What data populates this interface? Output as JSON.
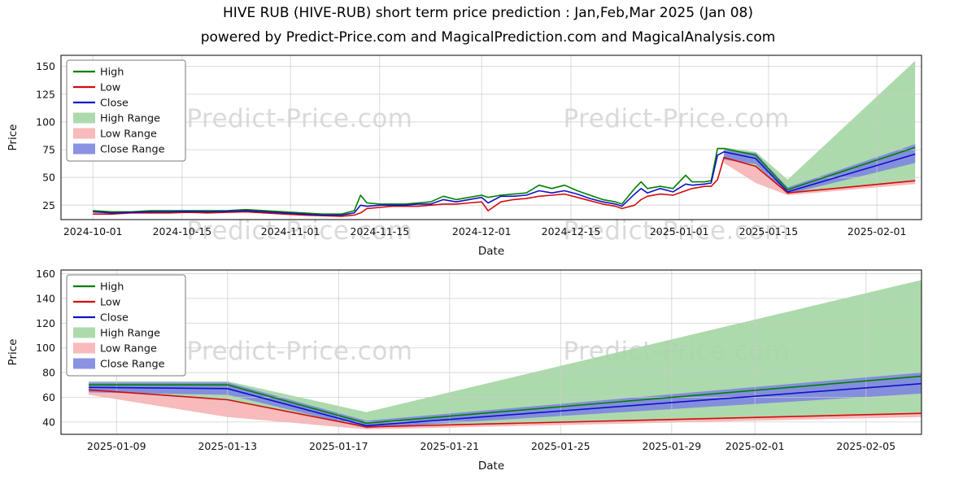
{
  "page": {
    "title": "HIVE RUB (HIVE-RUB) short term price prediction : Jan,Feb,Mar 2025 (Jan 08)",
    "subtitle": "powered by Predict-Price.com and MagicalPrediction.com and MagicalAnalysis.com",
    "watermark": "Predict-Price.com"
  },
  "colors": {
    "high": "#008000",
    "low": "#d40b0b",
    "close": "#1010cc",
    "high_range": "#a3d6a3",
    "low_range": "#f7b3b3",
    "close_range": "#7e86e0",
    "grid": "#cccccc",
    "watermark": "#c4c4c4"
  },
  "legend": [
    {
      "label": "High",
      "swatch": "line",
      "color_key": "high"
    },
    {
      "label": "Low",
      "swatch": "line",
      "color_key": "low"
    },
    {
      "label": "Close",
      "swatch": "line",
      "color_key": "close"
    },
    {
      "label": "High Range",
      "swatch": "patch",
      "color_key": "high_range"
    },
    {
      "label": "Low Range",
      "swatch": "patch",
      "color_key": "low_range"
    },
    {
      "label": "Close Range",
      "swatch": "patch",
      "color_key": "close_range"
    }
  ],
  "chart_data": [
    {
      "type": "line",
      "ylabel": "Price",
      "xlabel": "Date",
      "ylim": [
        12,
        160
      ],
      "yticks": [
        25,
        50,
        75,
        100,
        125,
        150
      ],
      "xdomain": [
        "2024-09-26",
        "2025-02-08"
      ],
      "xticks": [
        "2024-10-01",
        "2024-10-15",
        "2024-11-01",
        "2024-11-15",
        "2024-12-01",
        "2024-12-15",
        "2025-01-01",
        "2025-01-15",
        "2025-02-01"
      ],
      "history": {
        "dates": [
          "2024-10-01",
          "2024-10-04",
          "2024-10-07",
          "2024-10-10",
          "2024-10-13",
          "2024-10-16",
          "2024-10-19",
          "2024-10-22",
          "2024-10-25",
          "2024-10-28",
          "2024-10-31",
          "2024-11-03",
          "2024-11-06",
          "2024-11-09",
          "2024-11-11",
          "2024-11-12",
          "2024-11-13",
          "2024-11-15",
          "2024-11-17",
          "2024-11-19",
          "2024-11-21",
          "2024-11-23",
          "2024-11-25",
          "2024-11-27",
          "2024-11-29",
          "2024-12-01",
          "2024-12-02",
          "2024-12-04",
          "2024-12-06",
          "2024-12-08",
          "2024-12-10",
          "2024-12-12",
          "2024-12-14",
          "2024-12-16",
          "2024-12-18",
          "2024-12-20",
          "2024-12-22",
          "2024-12-23",
          "2024-12-25",
          "2024-12-26",
          "2024-12-27",
          "2024-12-29",
          "2024-12-31",
          "2025-01-02",
          "2025-01-03",
          "2025-01-05",
          "2025-01-06",
          "2025-01-07",
          "2025-01-08"
        ],
        "high": [
          20,
          19,
          19,
          20,
          20,
          20,
          20,
          20,
          21,
          20,
          19,
          18,
          17,
          17,
          20,
          34,
          27,
          26,
          26,
          26,
          27,
          28,
          33,
          30,
          32,
          34,
          32,
          34,
          35,
          36,
          43,
          40,
          43,
          38,
          34,
          30,
          28,
          26,
          40,
          46,
          40,
          42,
          40,
          52,
          46,
          46,
          47,
          76,
          76
        ],
        "low": [
          17,
          17,
          18,
          18,
          18,
          18.5,
          18,
          18.5,
          19,
          18,
          17,
          16,
          15.5,
          15,
          16,
          18,
          22,
          23,
          24,
          24,
          24,
          25,
          26,
          26,
          27,
          28,
          20,
          28,
          30,
          31,
          33,
          34,
          35,
          32,
          29,
          26,
          24,
          22,
          25,
          30,
          33,
          35,
          34,
          38,
          40,
          42,
          42,
          48,
          68
        ],
        "close": [
          19,
          18,
          18.5,
          19,
          19,
          19.5,
          19,
          19.5,
          20,
          19,
          18,
          17,
          16,
          16,
          18,
          25,
          24,
          25,
          25,
          25,
          26,
          26,
          30,
          28,
          30,
          32,
          27,
          33,
          33,
          34,
          38,
          36,
          38,
          35,
          31,
          28,
          26,
          24,
          35,
          40,
          36,
          40,
          37,
          44,
          43,
          44,
          45,
          70,
          73
        ]
      },
      "prediction": {
        "dates": [
          "2025-01-08",
          "2025-01-13",
          "2025-01-18",
          "2025-02-07"
        ],
        "high": [
          76,
          70,
          39,
          77
        ],
        "low": [
          68,
          60,
          36,
          47
        ],
        "close": [
          73,
          67,
          37,
          71
        ],
        "high_range_top": [
          77,
          73,
          48,
          155
        ],
        "low_range_bottom": [
          63,
          45,
          34,
          44
        ],
        "close_range_top": [
          75,
          72,
          41,
          80
        ],
        "close_range_bottom": [
          66,
          62,
          35,
          63
        ]
      }
    },
    {
      "type": "line",
      "ylabel": "Price",
      "xlabel": "Date",
      "ylim": [
        30,
        163
      ],
      "yticks": [
        40,
        60,
        80,
        100,
        120,
        140,
        160
      ],
      "xdomain": [
        "2025-01-07",
        "2025-02-07"
      ],
      "xticks": [
        "2025-01-09",
        "2025-01-13",
        "2025-01-17",
        "2025-01-21",
        "2025-01-25",
        "2025-01-29",
        "2025-02-01",
        "2025-02-05"
      ],
      "prediction": {
        "dates": [
          "2025-01-08",
          "2025-01-13",
          "2025-01-18",
          "2025-02-07"
        ],
        "high": [
          70,
          70,
          39,
          77
        ],
        "low": [
          66,
          58,
          36,
          47
        ],
        "close": [
          68,
          67,
          37,
          71
        ],
        "high_range_top": [
          73,
          73,
          48,
          155
        ],
        "low_range_bottom": [
          62,
          44,
          34,
          44
        ],
        "close_range_top": [
          72,
          72,
          41,
          80
        ],
        "close_range_bottom": [
          64,
          62,
          35,
          63
        ]
      }
    }
  ]
}
